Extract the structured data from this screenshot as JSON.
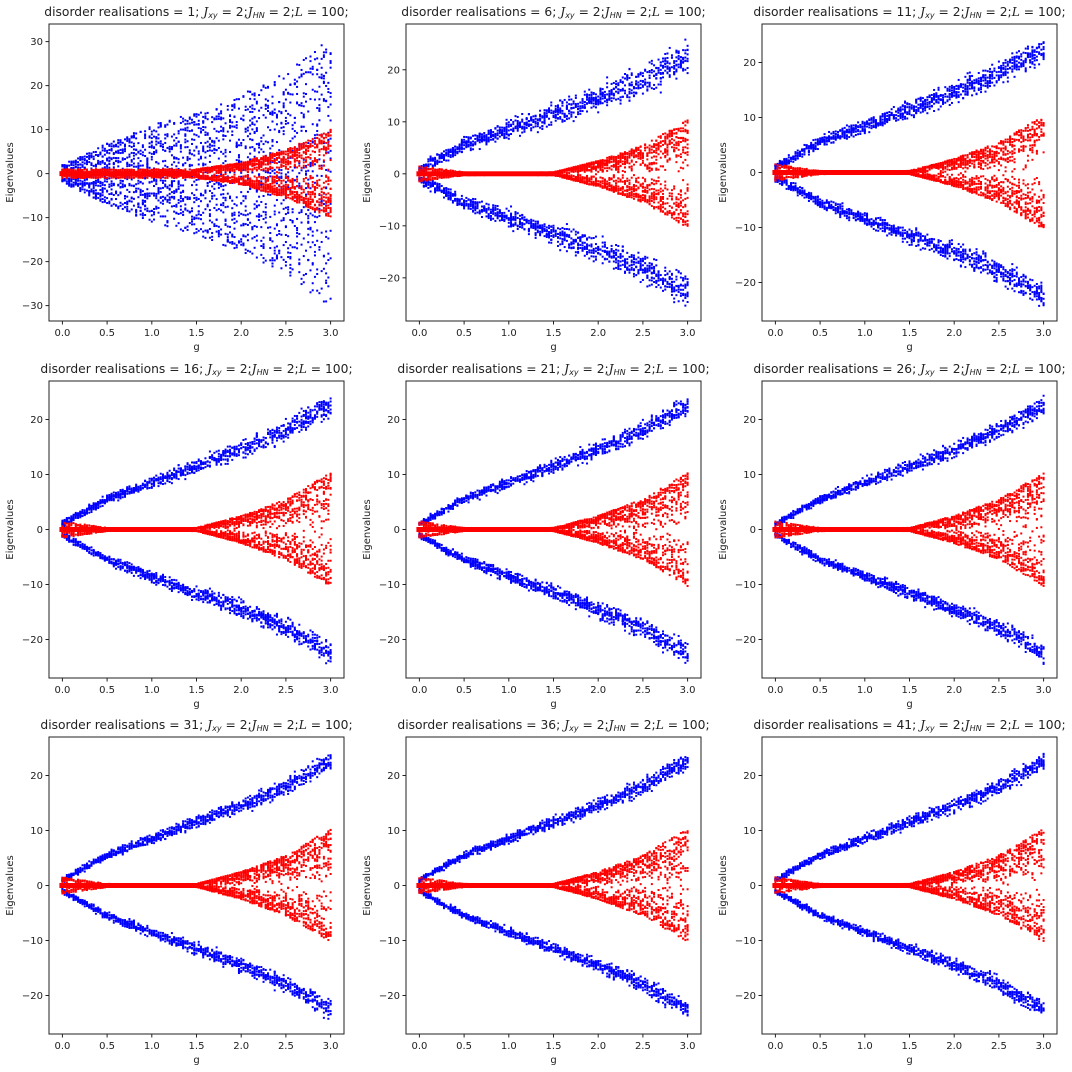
{
  "chart_data": [
    {
      "type": "scatter",
      "title": {
        "prefix": "disorder realisations = 1;",
        "params": [
          {
            "sym": "J",
            "sub": "xy",
            "val": " = 2;"
          },
          {
            "sym": "J",
            "sub": "HN",
            "val": " = 2;"
          },
          {
            "sym": "L",
            "sub": "",
            "val": " = 100;"
          }
        ]
      },
      "xlabel": "g",
      "ylabel": "Eigenvalues",
      "xlim": [
        -0.15,
        3.15
      ],
      "ylim": [
        -33.5,
        34
      ],
      "xticks": [
        "0.0",
        "0.5",
        "1.0",
        "1.5",
        "2.0",
        "2.5",
        "3.0"
      ],
      "yticks": [
        "30",
        "20",
        "10",
        "0",
        "−10",
        "−20",
        "−30"
      ],
      "series": [
        {
          "color": "#0000ff",
          "shape": "filled fan",
          "g": [
            0,
            0.5,
            1,
            1.5,
            2,
            2.5,
            3
          ],
          "upper": [
            2,
            7,
            11,
            14,
            18,
            23,
            31
          ],
          "lower": [
            -2,
            -7,
            -11,
            -14,
            -18,
            -23,
            -30.5
          ]
        },
        {
          "color": "#ff0000",
          "shape": "fan",
          "g": [
            0,
            0.5,
            1,
            1.5,
            2,
            2.5,
            3
          ],
          "upper": [
            1,
            1,
            1,
            1,
            2.5,
            5.5,
            10
          ],
          "lower": [
            -1,
            -1,
            -1,
            -1,
            -2.5,
            -5.5,
            -10
          ]
        }
      ]
    },
    {
      "type": "scatter",
      "title": {
        "prefix": "disorder realisations = 6;",
        "params": [
          {
            "sym": "J",
            "sub": "xy",
            "val": " = 2;"
          },
          {
            "sym": "J",
            "sub": "HN",
            "val": " = 2;"
          },
          {
            "sym": "L",
            "sub": "",
            "val": " = 100;"
          }
        ]
      },
      "xlabel": "g",
      "ylabel": "Eigenvalues",
      "xlim": [
        -0.15,
        3.15
      ],
      "ylim": [
        -28.3,
        28.8
      ],
      "xticks": [
        "0.0",
        "0.5",
        "1.0",
        "1.5",
        "2.0",
        "2.5",
        "3.0"
      ],
      "yticks": [
        "20",
        "10",
        "0",
        "−10",
        "−20"
      ],
      "series": [
        {
          "color": "#0000ff",
          "shape": "two bands",
          "g": [
            0,
            0.5,
            1,
            1.5,
            2,
            2.5,
            3
          ],
          "center": [
            1,
            5.5,
            8.5,
            11.5,
            14.5,
            18,
            22.5
          ],
          "spread": 2.2
        },
        {
          "color": "#ff0000",
          "shape": "fan",
          "g": [
            0,
            0.5,
            1,
            1.5,
            2,
            2.5,
            3
          ],
          "upper": [
            1.5,
            0.3,
            0.2,
            0.3,
            2.5,
            5.5,
            10.3
          ],
          "lower": [
            -1.5,
            -0.3,
            -0.2,
            -0.3,
            -2.5,
            -5.5,
            -10.3
          ]
        }
      ]
    },
    {
      "type": "scatter",
      "title": {
        "prefix": "disorder realisations = 11;",
        "params": [
          {
            "sym": "J",
            "sub": "xy",
            "val": " = 2;"
          },
          {
            "sym": "J",
            "sub": "HN",
            "val": " = 2;"
          },
          {
            "sym": "L",
            "sub": "",
            "val": " = 100;"
          }
        ]
      },
      "xlabel": "g",
      "ylabel": "Eigenvalues",
      "xlim": [
        -0.15,
        3.15
      ],
      "ylim": [
        -27,
        27
      ],
      "xticks": [
        "0.0",
        "0.5",
        "1.0",
        "1.5",
        "2.0",
        "2.5",
        "3.0"
      ],
      "yticks": [
        "20",
        "10",
        "0",
        "−10",
        "−20"
      ],
      "series": [
        {
          "color": "#0000ff",
          "shape": "two bands",
          "g": [
            0,
            0.5,
            1,
            1.5,
            2,
            2.5,
            3
          ],
          "center": [
            1,
            5.5,
            8.5,
            11.5,
            14.5,
            18,
            22.5
          ],
          "spread": 1.6
        },
        {
          "color": "#ff0000",
          "shape": "fan",
          "g": [
            0,
            0.5,
            1,
            1.5,
            2,
            2.5,
            3
          ],
          "upper": [
            1.5,
            0.3,
            0.2,
            0.3,
            2.5,
            5.5,
            10.3
          ],
          "lower": [
            -1.5,
            -0.3,
            -0.2,
            -0.3,
            -2.5,
            -5.5,
            -10.3
          ]
        }
      ]
    },
    {
      "type": "scatter",
      "title": {
        "prefix": "disorder realisations = 16;",
        "params": [
          {
            "sym": "J",
            "sub": "xy",
            "val": " = 2;"
          },
          {
            "sym": "J",
            "sub": "HN",
            "val": " = 2;"
          },
          {
            "sym": "L",
            "sub": "",
            "val": " = 100;"
          }
        ]
      },
      "xlabel": "g",
      "ylabel": "Eigenvalues",
      "xlim": [
        -0.15,
        3.15
      ],
      "ylim": [
        -27,
        27
      ],
      "xticks": [
        "0.0",
        "0.5",
        "1.0",
        "1.5",
        "2.0",
        "2.5",
        "3.0"
      ],
      "yticks": [
        "20",
        "10",
        "0",
        "−10",
        "−20"
      ],
      "series": [
        {
          "color": "#0000ff",
          "shape": "two bands",
          "g": [
            0,
            0.5,
            1,
            1.5,
            2,
            2.5,
            3
          ],
          "center": [
            1,
            5.5,
            8.5,
            11.5,
            14.5,
            18,
            22.5
          ],
          "spread": 1.4
        },
        {
          "color": "#ff0000",
          "shape": "fan",
          "g": [
            0,
            0.5,
            1,
            1.5,
            2,
            2.5,
            3
          ],
          "upper": [
            1.5,
            0.3,
            0.2,
            0.3,
            2.5,
            5.5,
            10.3
          ],
          "lower": [
            -1.5,
            -0.3,
            -0.2,
            -0.3,
            -2.5,
            -5.5,
            -10.3
          ]
        }
      ]
    },
    {
      "type": "scatter",
      "title": {
        "prefix": "disorder realisations = 21;",
        "params": [
          {
            "sym": "J",
            "sub": "xy",
            "val": " = 2;"
          },
          {
            "sym": "J",
            "sub": "HN",
            "val": " = 2;"
          },
          {
            "sym": "L",
            "sub": "",
            "val": " = 100;"
          }
        ]
      },
      "xlabel": "g",
      "ylabel": "Eigenvalues",
      "xlim": [
        -0.15,
        3.15
      ],
      "ylim": [
        -27,
        27
      ],
      "xticks": [
        "0.0",
        "0.5",
        "1.0",
        "1.5",
        "2.0",
        "2.5",
        "3.0"
      ],
      "yticks": [
        "20",
        "10",
        "0",
        "−10",
        "−20"
      ],
      "series": [
        {
          "color": "#0000ff",
          "shape": "two bands",
          "g": [
            0,
            0.5,
            1,
            1.5,
            2,
            2.5,
            3
          ],
          "center": [
            1,
            5.5,
            8.5,
            11.5,
            14.5,
            18,
            22.5
          ],
          "spread": 1.3
        },
        {
          "color": "#ff0000",
          "shape": "fan",
          "g": [
            0,
            0.5,
            1,
            1.5,
            2,
            2.5,
            3
          ],
          "upper": [
            1.5,
            0.3,
            0.2,
            0.3,
            2.5,
            5.5,
            10.3
          ],
          "lower": [
            -1.5,
            -0.3,
            -0.2,
            -0.3,
            -2.5,
            -5.5,
            -10.3
          ]
        }
      ]
    },
    {
      "type": "scatter",
      "title": {
        "prefix": "disorder realisations = 26;",
        "params": [
          {
            "sym": "J",
            "sub": "xy",
            "val": " = 2;"
          },
          {
            "sym": "J",
            "sub": "HN",
            "val": " = 2;"
          },
          {
            "sym": "L",
            "sub": "",
            "val": " = 100;"
          }
        ]
      },
      "xlabel": "g",
      "ylabel": "Eigenvalues",
      "xlim": [
        -0.15,
        3.15
      ],
      "ylim": [
        -27,
        27
      ],
      "xticks": [
        "0.0",
        "0.5",
        "1.0",
        "1.5",
        "2.0",
        "2.5",
        "3.0"
      ],
      "yticks": [
        "20",
        "10",
        "0",
        "−10",
        "−20"
      ],
      "series": [
        {
          "color": "#0000ff",
          "shape": "two bands",
          "g": [
            0,
            0.5,
            1,
            1.5,
            2,
            2.5,
            3
          ],
          "center": [
            1,
            5.5,
            8.5,
            11.5,
            14.5,
            18,
            22.5
          ],
          "spread": 1.2
        },
        {
          "color": "#ff0000",
          "shape": "fan",
          "g": [
            0,
            0.5,
            1,
            1.5,
            2,
            2.5,
            3
          ],
          "upper": [
            1.5,
            0.3,
            0.2,
            0.3,
            2.5,
            5.5,
            10.3
          ],
          "lower": [
            -1.5,
            -0.3,
            -0.2,
            -0.3,
            -2.5,
            -5.5,
            -10.3
          ]
        }
      ]
    },
    {
      "type": "scatter",
      "title": {
        "prefix": "disorder realisations = 31;",
        "params": [
          {
            "sym": "J",
            "sub": "xy",
            "val": " = 2;"
          },
          {
            "sym": "J",
            "sub": "HN",
            "val": " = 2;"
          },
          {
            "sym": "L",
            "sub": "",
            "val": " = 100;"
          }
        ]
      },
      "xlabel": "g",
      "ylabel": "Eigenvalues",
      "xlim": [
        -0.15,
        3.15
      ],
      "ylim": [
        -27,
        27
      ],
      "xticks": [
        "0.0",
        "0.5",
        "1.0",
        "1.5",
        "2.0",
        "2.5",
        "3.0"
      ],
      "yticks": [
        "20",
        "10",
        "0",
        "−10",
        "−20"
      ],
      "series": [
        {
          "color": "#0000ff",
          "shape": "two bands",
          "g": [
            0,
            0.5,
            1,
            1.5,
            2,
            2.5,
            3
          ],
          "center": [
            1,
            5.5,
            8.5,
            11.5,
            14.5,
            18,
            22.5
          ],
          "spread": 1.2
        },
        {
          "color": "#ff0000",
          "shape": "fan",
          "g": [
            0,
            0.5,
            1,
            1.5,
            2,
            2.5,
            3
          ],
          "upper": [
            1.5,
            0.3,
            0.2,
            0.3,
            2.5,
            5.5,
            10.3
          ],
          "lower": [
            -1.5,
            -0.3,
            -0.2,
            -0.3,
            -2.5,
            -5.5,
            -10.3
          ]
        }
      ]
    },
    {
      "type": "scatter",
      "title": {
        "prefix": "disorder realisations = 36;",
        "params": [
          {
            "sym": "J",
            "sub": "xy",
            "val": " = 2;"
          },
          {
            "sym": "J",
            "sub": "HN",
            "val": " = 2;"
          },
          {
            "sym": "L",
            "sub": "",
            "val": " = 100;"
          }
        ]
      },
      "xlabel": "g",
      "ylabel": "Eigenvalues",
      "xlim": [
        -0.15,
        3.15
      ],
      "ylim": [
        -27,
        27
      ],
      "xticks": [
        "0.0",
        "0.5",
        "1.0",
        "1.5",
        "2.0",
        "2.5",
        "3.0"
      ],
      "yticks": [
        "20",
        "10",
        "0",
        "−10",
        "−20"
      ],
      "series": [
        {
          "color": "#0000ff",
          "shape": "two bands",
          "g": [
            0,
            0.5,
            1,
            1.5,
            2,
            2.5,
            3
          ],
          "center": [
            1,
            5.5,
            8.5,
            11.5,
            14.5,
            18,
            22.5
          ],
          "spread": 1.1
        },
        {
          "color": "#ff0000",
          "shape": "fan",
          "g": [
            0,
            0.5,
            1,
            1.5,
            2,
            2.5,
            3
          ],
          "upper": [
            1.5,
            0.3,
            0.2,
            0.3,
            2.5,
            5.5,
            10.3
          ],
          "lower": [
            -1.5,
            -0.3,
            -0.2,
            -0.3,
            -2.5,
            -5.5,
            -10.3
          ]
        }
      ]
    },
    {
      "type": "scatter",
      "title": {
        "prefix": "disorder realisations = 41;",
        "params": [
          {
            "sym": "J",
            "sub": "xy",
            "val": " = 2;"
          },
          {
            "sym": "J",
            "sub": "HN",
            "val": " = 2;"
          },
          {
            "sym": "L",
            "sub": "",
            "val": " = 100;"
          }
        ]
      },
      "xlabel": "g",
      "ylabel": "Eigenvalues",
      "xlim": [
        -0.15,
        3.15
      ],
      "ylim": [
        -27,
        27
      ],
      "xticks": [
        "0.0",
        "0.5",
        "1.0",
        "1.5",
        "2.0",
        "2.5",
        "3.0"
      ],
      "yticks": [
        "20",
        "10",
        "0",
        "−10",
        "−20"
      ],
      "series": [
        {
          "color": "#0000ff",
          "shape": "two bands",
          "g": [
            0,
            0.5,
            1,
            1.5,
            2,
            2.5,
            3
          ],
          "center": [
            1,
            5.5,
            8.5,
            11.5,
            14.5,
            18,
            22.5
          ],
          "spread": 1.1
        },
        {
          "color": "#ff0000",
          "shape": "fan",
          "g": [
            0,
            0.5,
            1,
            1.5,
            2,
            2.5,
            3
          ],
          "upper": [
            1.5,
            0.3,
            0.2,
            0.3,
            2.5,
            5.5,
            10.3
          ],
          "lower": [
            -1.5,
            -0.3,
            -0.2,
            -0.3,
            -2.5,
            -5.5,
            -10.3
          ]
        }
      ]
    }
  ]
}
